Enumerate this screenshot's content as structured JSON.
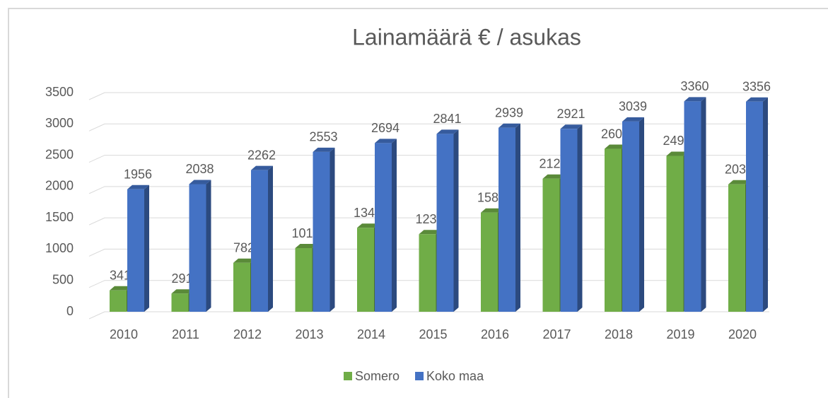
{
  "chart_data": {
    "type": "bar",
    "title": "Lainamäärä € / asukas",
    "categories": [
      "2010",
      "2011",
      "2012",
      "2013",
      "2014",
      "2015",
      "2016",
      "2017",
      "2018",
      "2019",
      "2020"
    ],
    "series": [
      {
        "name": "Somero",
        "color": "#70ad47",
        "values": [
          341,
          291,
          782,
          1016,
          1341,
          1239,
          1584,
          2126,
          2602,
          2490,
          2035
        ]
      },
      {
        "name": "Koko maa",
        "color": "#4472c4",
        "values": [
          1956,
          2038,
          2262,
          2553,
          2694,
          2841,
          2939,
          2921,
          3039,
          3360,
          3356
        ]
      }
    ],
    "ylim": [
      0,
      3500
    ],
    "yticks": [
      0,
      500,
      1000,
      1500,
      2000,
      2500,
      3000,
      3500
    ],
    "grid": true,
    "legend": "bottom"
  }
}
